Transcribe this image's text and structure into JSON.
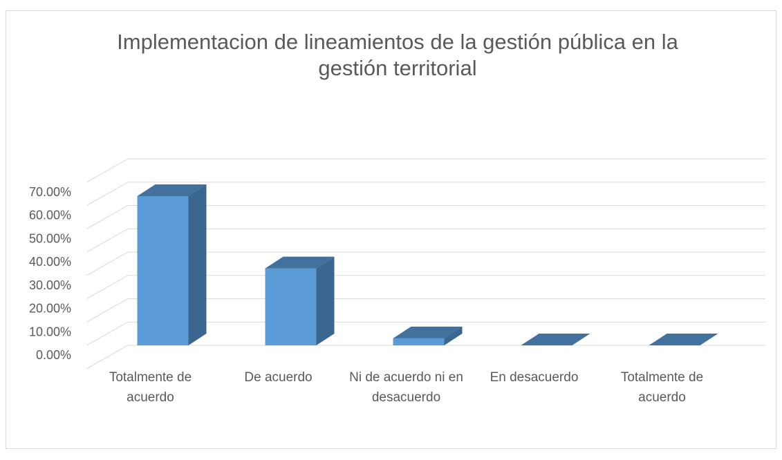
{
  "chart_data": {
    "type": "bar3d",
    "title": "Implementacion de lineamientos de la gestión pública en la gestión territorial",
    "categories": [
      "Totalmente de acuerdo",
      "De acuerdo",
      "Ni de acuerdo ni en desacuerdo",
      "En desacuerdo",
      "Totalmente de acuerdo"
    ],
    "values": [
      64,
      33,
      3,
      0,
      0
    ],
    "color": "#5b9bd5",
    "ylim": [
      0,
      80
    ],
    "yticks": [
      {
        "value": 0,
        "label": "0.00%"
      },
      {
        "value": 10,
        "label": "10.00%"
      },
      {
        "value": 20,
        "label": "20.00%"
      },
      {
        "value": 30,
        "label": "30.00%"
      },
      {
        "value": 40,
        "label": "40.00%"
      },
      {
        "value": 50,
        "label": "50.00%"
      },
      {
        "value": 60,
        "label": "60.00%"
      },
      {
        "value": 70,
        "label": "70.00%"
      }
    ],
    "grid": true
  }
}
